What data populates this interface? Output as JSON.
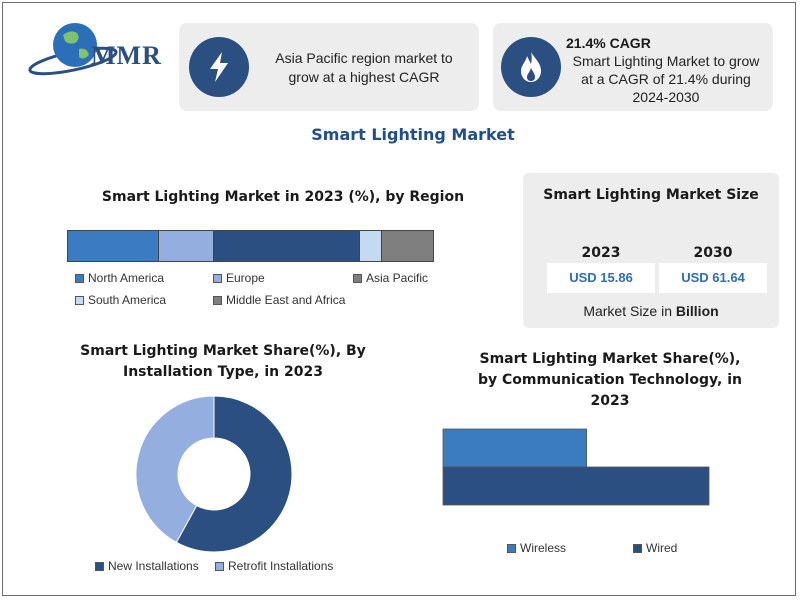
{
  "logo": {
    "text": "MMR"
  },
  "card1": {
    "icon": "lightning-icon",
    "text_line1": "Asia Pacific region market to",
    "text_line2": "grow at a highest CAGR"
  },
  "card2": {
    "icon": "flame-icon",
    "heading": "21.4% CAGR",
    "text_line1": "Smart Lighting Market to grow",
    "text_line2": "at a CAGR of 21.4% during",
    "text_line3": "2024-2030"
  },
  "main_title": "Smart Lighting Market",
  "market_size": {
    "title": "Smart Lighting Market Size",
    "year1": "2023",
    "value1": "USD 15.86",
    "year2": "2030",
    "value2": "USD 61.64",
    "footer_prefix": "Market Size in ",
    "footer_bold": "Billion"
  },
  "colors": {
    "dark_blue": "#2a4f80",
    "medium_blue": "#3b7bc0",
    "light_blue": "#94aee0",
    "pale_blue": "#c5d9f1",
    "gray": "#7f7f7f",
    "card_bg": "#ededed"
  },
  "chart_data": [
    {
      "type": "bar",
      "title": "Smart Lighting Market in 2023 (%), by Region",
      "orientation": "stacked-horizontal-100",
      "categories": [
        "North America",
        "Europe",
        "Asia Pacific",
        "South America",
        "Middle East and Africa"
      ],
      "series_order": [
        "North America",
        "Europe",
        "Asia Pacific",
        "South America",
        "Middle East and Africa"
      ],
      "values": [
        25,
        15,
        40,
        6,
        14
      ],
      "colors": [
        "#3b7bc0",
        "#94aee0",
        "#2a4f80",
        "#c5d9f1",
        "#7f7f7f"
      ],
      "legend_position": "bottom"
    },
    {
      "type": "pie",
      "variant": "donut",
      "title_line1": "Smart Lighting Market Share(%), By",
      "title_line2": "Installation Type, in 2023",
      "categories": [
        "New Installations",
        "Retrofit Installations"
      ],
      "values": [
        58,
        42
      ],
      "colors": [
        "#2a4f80",
        "#94aee0"
      ],
      "legend_position": "bottom"
    },
    {
      "type": "bar",
      "orientation": "horizontal",
      "title_line1": "Smart Lighting Market Share(%),",
      "title_line2": "by Communication Technology, in",
      "title_line3": "2023",
      "categories": [
        "Wireless",
        "Wired"
      ],
      "values": [
        54,
        100
      ],
      "colors": [
        "#3b7bc0",
        "#2a4f80"
      ],
      "legend_position": "bottom"
    }
  ]
}
